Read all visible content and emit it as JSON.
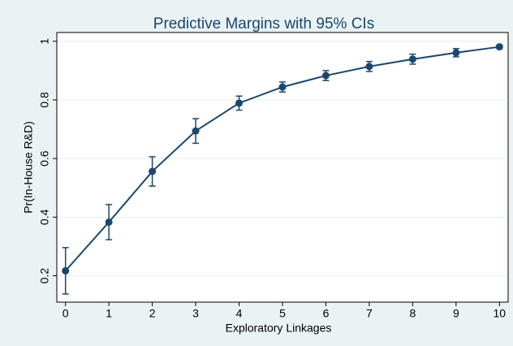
{
  "chart_data": {
    "type": "line",
    "title": "Predictive Margins with 95% CIs",
    "x_label": "Exploratory Linkages",
    "y_label": "Pr(In-House R&D)",
    "x": [
      0,
      1,
      2,
      3,
      4,
      5,
      6,
      7,
      8,
      9,
      10
    ],
    "values": [
      0.217,
      0.383,
      0.556,
      0.694,
      0.789,
      0.844,
      0.883,
      0.914,
      0.939,
      0.961,
      0.981
    ],
    "errors": [
      0.079,
      0.06,
      0.05,
      0.042,
      0.024,
      0.017,
      0.017,
      0.017,
      0.017,
      0.014,
      0.006
    ],
    "color": "#1a476f",
    "xlim": [
      -0.2,
      10.2
    ],
    "xticks": [
      0,
      1,
      2,
      3,
      4,
      5,
      6,
      7,
      8,
      9,
      10
    ],
    "ylim": [
      0.11,
      1.03
    ],
    "yticks": [
      0.2,
      0.4,
      0.6,
      0.8,
      1
    ],
    "grid": true
  }
}
